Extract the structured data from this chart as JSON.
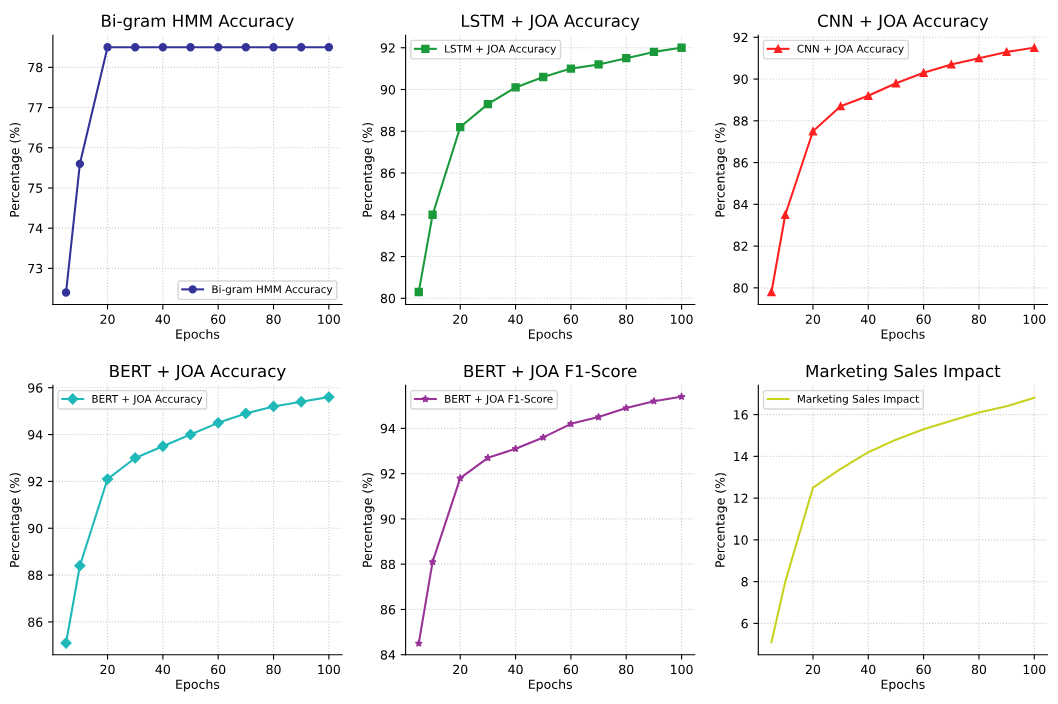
{
  "chart_data": [
    {
      "type": "line",
      "title": "Bi-gram HMM Accuracy",
      "xlabel": "Epochs",
      "ylabel": "Percentage (%)",
      "x": [
        5,
        10,
        20,
        30,
        40,
        50,
        60,
        70,
        80,
        90,
        100
      ],
      "xlim": [
        0.25,
        104.75
      ],
      "xticks": [
        20,
        40,
        60,
        80,
        100
      ],
      "ylim": [
        72.1,
        78.8
      ],
      "yticks": [
        73,
        74,
        75,
        76,
        77,
        78
      ],
      "grid": true,
      "legend": "lower right",
      "marker": "circle",
      "line_style": "solid",
      "series": [
        {
          "name": "Bi-gram HMM Accuracy",
          "color": "#333399",
          "values": [
            72.4,
            75.6,
            78.5,
            78.5,
            78.5,
            78.5,
            78.5,
            78.5,
            78.5,
            78.5,
            78.5
          ]
        }
      ]
    },
    {
      "type": "line",
      "title": "LSTM + JOA Accuracy",
      "xlabel": "Epochs",
      "ylabel": "Percentage (%)",
      "x": [
        5,
        10,
        20,
        30,
        40,
        50,
        60,
        70,
        80,
        90,
        100
      ],
      "xlim": [
        0.25,
        104.75
      ],
      "xticks": [
        20,
        40,
        60,
        80,
        100
      ],
      "ylim": [
        79.7,
        92.6
      ],
      "yticks": [
        80,
        82,
        84,
        86,
        88,
        90,
        92
      ],
      "grid": true,
      "legend": "upper left",
      "marker": "square",
      "line_style": "solid",
      "series": [
        {
          "name": "LSTM + JOA Accuracy",
          "color": "#1a9a3a",
          "values": [
            80.3,
            84.0,
            88.2,
            89.3,
            90.1,
            90.6,
            91.0,
            91.2,
            91.5,
            91.8,
            92.0
          ]
        }
      ]
    },
    {
      "type": "line",
      "title": "CNN + JOA Accuracy",
      "xlabel": "Epochs",
      "ylabel": "Percentage (%)",
      "x": [
        5,
        10,
        20,
        30,
        40,
        50,
        60,
        70,
        80,
        90,
        100
      ],
      "xlim": [
        0.25,
        104.75
      ],
      "xticks": [
        20,
        40,
        60,
        80,
        100
      ],
      "ylim": [
        79.2,
        92.1
      ],
      "yticks": [
        80,
        82,
        84,
        86,
        88,
        90,
        92
      ],
      "grid": true,
      "legend": "upper left",
      "marker": "triangle",
      "line_style": "solid",
      "series": [
        {
          "name": "CNN + JOA Accuracy",
          "color": "#ff2020",
          "values": [
            79.8,
            83.5,
            87.5,
            88.7,
            89.2,
            89.8,
            90.3,
            90.7,
            91.0,
            91.3,
            91.5
          ]
        }
      ]
    },
    {
      "type": "line",
      "title": "BERT + JOA Accuracy",
      "xlabel": "Epochs",
      "ylabel": "Percentage (%)",
      "x": [
        5,
        10,
        20,
        30,
        40,
        50,
        60,
        70,
        80,
        90,
        100
      ],
      "xlim": [
        0.25,
        104.75
      ],
      "xticks": [
        20,
        40,
        60,
        80,
        100
      ],
      "ylim": [
        84.6,
        96.1
      ],
      "yticks": [
        86,
        88,
        90,
        92,
        94,
        96
      ],
      "grid": true,
      "legend": "upper left",
      "marker": "diamond",
      "line_style": "solid",
      "series": [
        {
          "name": "BERT + JOA Accuracy",
          "color": "#20b8b8",
          "values": [
            85.1,
            88.4,
            92.1,
            93.0,
            93.5,
            94.0,
            94.5,
            94.9,
            95.2,
            95.4,
            95.6
          ]
        }
      ]
    },
    {
      "type": "line",
      "title": "BERT + JOA F1-Score",
      "xlabel": "Epochs",
      "ylabel": "Percentage (%)",
      "x": [
        5,
        10,
        20,
        30,
        40,
        50,
        60,
        70,
        80,
        90,
        100
      ],
      "xlim": [
        0.25,
        104.75
      ],
      "xticks": [
        20,
        40,
        60,
        80,
        100
      ],
      "ylim": [
        84.0,
        95.9
      ],
      "yticks": [
        84,
        86,
        88,
        90,
        92,
        94
      ],
      "grid": true,
      "legend": "upper left",
      "marker": "star",
      "line_style": "solid",
      "series": [
        {
          "name": "BERT + JOA F1-Score",
          "color": "#993399",
          "values": [
            84.5,
            88.1,
            91.8,
            92.7,
            93.1,
            93.6,
            94.2,
            94.5,
            94.9,
            95.2,
            95.4
          ]
        }
      ]
    },
    {
      "type": "line",
      "title": "Marketing Sales Impact",
      "xlabel": "Epochs",
      "ylabel": "Percentage (%)",
      "x": [
        5,
        10,
        20,
        30,
        40,
        50,
        60,
        70,
        80,
        90,
        100
      ],
      "xlim": [
        0.25,
        104.75
      ],
      "xticks": [
        20,
        40,
        60,
        80,
        100
      ],
      "ylim": [
        4.5,
        17.4
      ],
      "yticks": [
        6,
        8,
        10,
        12,
        14,
        16
      ],
      "grid": true,
      "legend": "upper left",
      "line_style": "solid",
      "series": [
        {
          "name": "Marketing Sales Impact",
          "color": "#c8d21e",
          "values": [
            5.1,
            8.0,
            12.5,
            13.4,
            14.2,
            14.8,
            15.3,
            15.7,
            16.1,
            16.4,
            16.8
          ]
        }
      ]
    }
  ]
}
